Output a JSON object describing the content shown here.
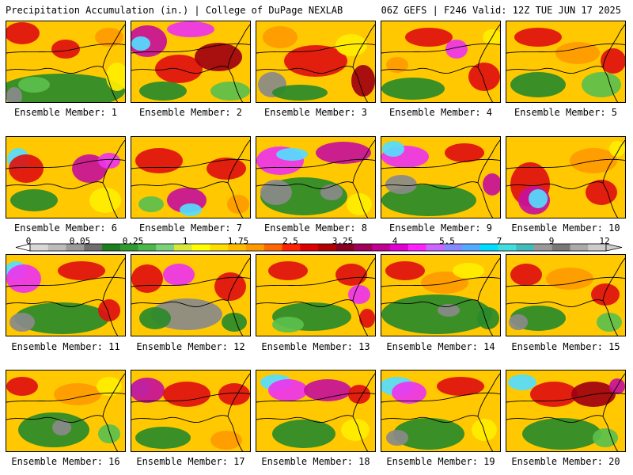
{
  "header": {
    "left": "Precipitation Accumulation (in.) | College of DuPage NEXLAB",
    "right": "06Z GEFS | F246 Valid: 12Z TUE JUN 17 2025"
  },
  "legend": {
    "labels": [
      "0",
      "0.05",
      "0.25",
      "1",
      "1.75",
      "2.5",
      "3.25",
      "4",
      "5.5",
      "7",
      "9",
      "12"
    ],
    "colors": [
      "#d8d8d8",
      "#bcbcbc",
      "#9a9a9a",
      "#6e6e6e",
      "#1e7d1e",
      "#2f9a2f",
      "#4cb84c",
      "#7bd27b",
      "#d8e83a",
      "#ffff00",
      "#ffdd00",
      "#ffbb00",
      "#ff9900",
      "#ff6600",
      "#ff2200",
      "#dd0000",
      "#b00000",
      "#880022",
      "#a0005a",
      "#c00090",
      "#e000d0",
      "#ff22ff",
      "#cc66ff",
      "#8888ff",
      "#55aaff",
      "#00ddff",
      "#44dddd",
      "#44bbbb",
      "#999999",
      "#777777",
      "#aaaaaa",
      "#cccccc"
    ]
  },
  "members": [
    {
      "label": "Ensemble Member: 1"
    },
    {
      "label": "Ensemble Member: 2"
    },
    {
      "label": "Ensemble Member: 3"
    },
    {
      "label": "Ensemble Member: 4"
    },
    {
      "label": "Ensemble Member: 5"
    },
    {
      "label": "Ensemble Member: 6"
    },
    {
      "label": "Ensemble Member: 7"
    },
    {
      "label": "Ensemble Member: 8"
    },
    {
      "label": "Ensemble Member: 9"
    },
    {
      "label": "Ensemble Member: 10"
    },
    {
      "label": "Ensemble Member: 11"
    },
    {
      "label": "Ensemble Member: 12"
    },
    {
      "label": "Ensemble Member: 13"
    },
    {
      "label": "Ensemble Member: 14"
    },
    {
      "label": "Ensemble Member: 15"
    },
    {
      "label": "Ensemble Member: 16"
    },
    {
      "label": "Ensemble Member: 17"
    },
    {
      "label": "Ensemble Member: 18"
    },
    {
      "label": "Ensemble Member: 19"
    },
    {
      "label": "Ensemble Member: 20"
    }
  ]
}
